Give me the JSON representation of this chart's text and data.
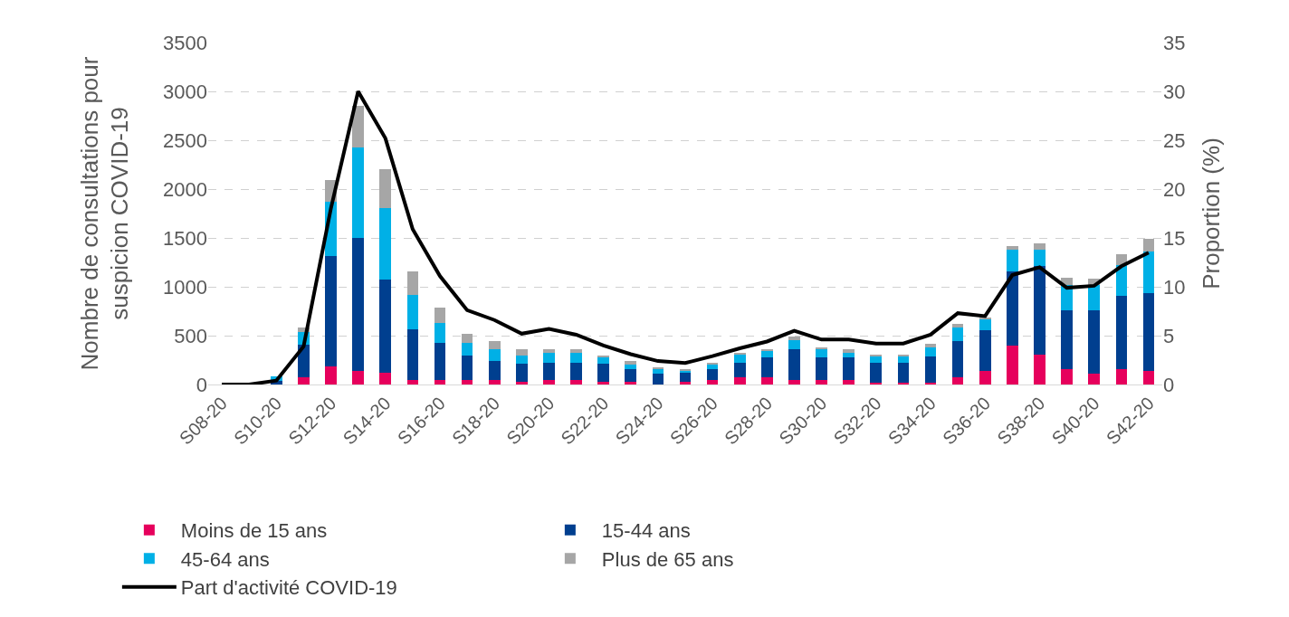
{
  "chart_data": {
    "type": "bar",
    "stacked": true,
    "ylabel": "Nombre de consultations pour\nsuspicion COVID-19",
    "y2label": "Proportion (%)",
    "categories": [
      "S08-20",
      null,
      "S10-20",
      null,
      "S12-20",
      null,
      "S14-20",
      null,
      "S16-20",
      null,
      "S18-20",
      null,
      "S20-20",
      null,
      "S22-20",
      null,
      "S24-20",
      null,
      "S26-20",
      null,
      "S28-20",
      null,
      "S30-20",
      null,
      "S32-20",
      null,
      "S34-20",
      null,
      "S36-20",
      null,
      "S38-20",
      null,
      "S40-20",
      null,
      "S42-20"
    ],
    "series": [
      {
        "name": "Moins de 15 ans",
        "color": "#e6005c",
        "values": [
          0,
          0,
          0,
          75,
          185,
          140,
          120,
          50,
          50,
          50,
          50,
          30,
          50,
          50,
          30,
          30,
          0,
          30,
          50,
          70,
          70,
          50,
          45,
          45,
          20,
          20,
          20,
          70,
          135,
          400,
          310,
          155,
          110,
          155,
          135
        ]
      },
      {
        "name": "15-44 ans",
        "color": "#003f8f",
        "values": [
          0,
          0,
          40,
          330,
          1130,
          1360,
          955,
          515,
          380,
          245,
          195,
          180,
          175,
          175,
          180,
          130,
          110,
          90,
          110,
          155,
          205,
          310,
          230,
          230,
          205,
          205,
          270,
          375,
          420,
          760,
          900,
          600,
          645,
          755,
          800
        ]
      },
      {
        "name": "45-64 ans",
        "color": "#00b0e6",
        "values": [
          0,
          0,
          40,
          135,
          560,
          930,
          730,
          355,
          200,
          135,
          115,
          90,
          95,
          95,
          70,
          45,
          45,
          25,
          45,
          85,
          70,
          90,
          95,
          45,
          70,
          70,
          90,
          135,
          115,
          220,
          170,
          265,
          265,
          315,
          430
        ]
      },
      {
        "name": "Plus de 65 ans",
        "color": "#a6a6a6",
        "values": [
          0,
          0,
          0,
          45,
          220,
          420,
          400,
          240,
          155,
          85,
          85,
          65,
          45,
          45,
          15,
          40,
          20,
          10,
          15,
          15,
          20,
          40,
          10,
          40,
          15,
          15,
          40,
          45,
          10,
          40,
          65,
          70,
          60,
          105,
          130
        ]
      },
      {
        "name": "Part d'activité COVID-19",
        "type": "line",
        "axis": "y2",
        "color": "#000000",
        "values": [
          0,
          0,
          0.4,
          3.9,
          18,
          30,
          25.2,
          15.9,
          11.1,
          7.6,
          6.6,
          5.2,
          5.7,
          5.1,
          4.0,
          3.1,
          2.4,
          2.2,
          2.9,
          3.7,
          4.4,
          5.5,
          4.6,
          4.6,
          4.2,
          4.2,
          5.1,
          7.3,
          7.0,
          11.2,
          12.0,
          9.9,
          10.1,
          12.1,
          13.5
        ]
      }
    ],
    "ylim": [
      0,
      3500
    ],
    "yticks": [
      0,
      500,
      1000,
      1500,
      2000,
      2500,
      3000,
      3500
    ],
    "y2lim": [
      0,
      35
    ],
    "y2ticks": [
      0,
      5,
      10,
      15,
      20,
      25,
      30,
      35
    ],
    "grid": "y",
    "legend": "bottom"
  }
}
